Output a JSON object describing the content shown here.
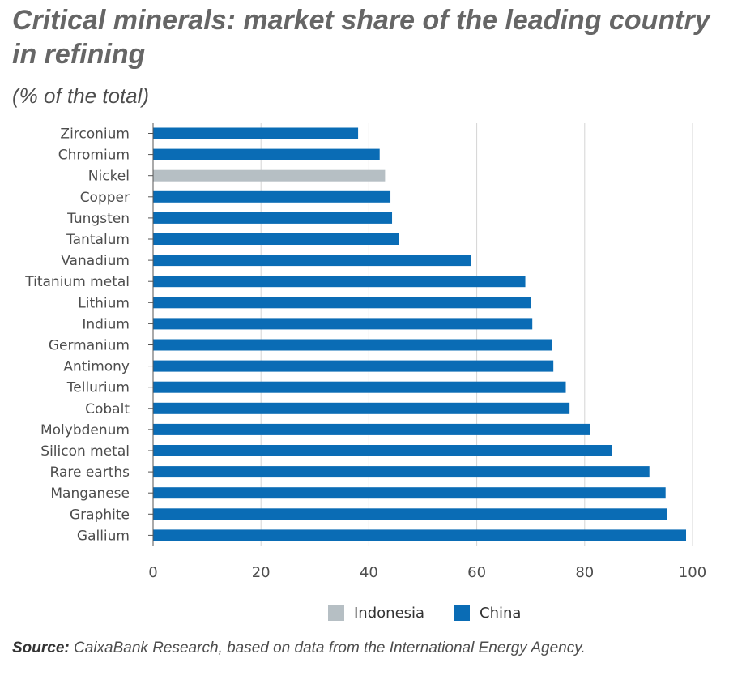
{
  "title": "Critical minerals: market share of the leading country in refining",
  "subtitle": "(% of the total)",
  "colors": {
    "China": "#0a6cb5",
    "Indonesia": "#b6bfc4",
    "grid": "#d4d4d4",
    "axis": "#555555"
  },
  "legend": [
    {
      "name": "Indonesia",
      "color": "#b6bfc4"
    },
    {
      "name": "China",
      "color": "#0a6cb5"
    }
  ],
  "source": {
    "label": "Source:",
    "text": " CaixaBank Research, based on data from the International Energy Agency."
  },
  "chart_data": {
    "type": "bar",
    "orientation": "horizontal",
    "xlim": [
      0,
      100
    ],
    "xticks": [
      0,
      20,
      40,
      60,
      80,
      100
    ],
    "grid": true,
    "legend_position": "bottom",
    "categories": [
      "Zirconium",
      "Chromium",
      "Nickel",
      "Copper",
      "Tungsten",
      "Tantalum",
      "Vanadium",
      "Titanium metal",
      "Lithium",
      "Indium",
      "Germanium",
      "Antimony",
      "Tellurium",
      "Cobalt",
      "Molybdenum",
      "Silicon metal",
      "Rare earths",
      "Manganese",
      "Graphite",
      "Gallium"
    ],
    "values": [
      38,
      42,
      43,
      44,
      44.3,
      45.5,
      59,
      69,
      70,
      70.3,
      74,
      74.2,
      76.5,
      77.2,
      81,
      85,
      92,
      95,
      95.3,
      98.8
    ],
    "leader": [
      "China",
      "China",
      "Indonesia",
      "China",
      "China",
      "China",
      "China",
      "China",
      "China",
      "China",
      "China",
      "China",
      "China",
      "China",
      "China",
      "China",
      "China",
      "China",
      "China",
      "China"
    ]
  }
}
